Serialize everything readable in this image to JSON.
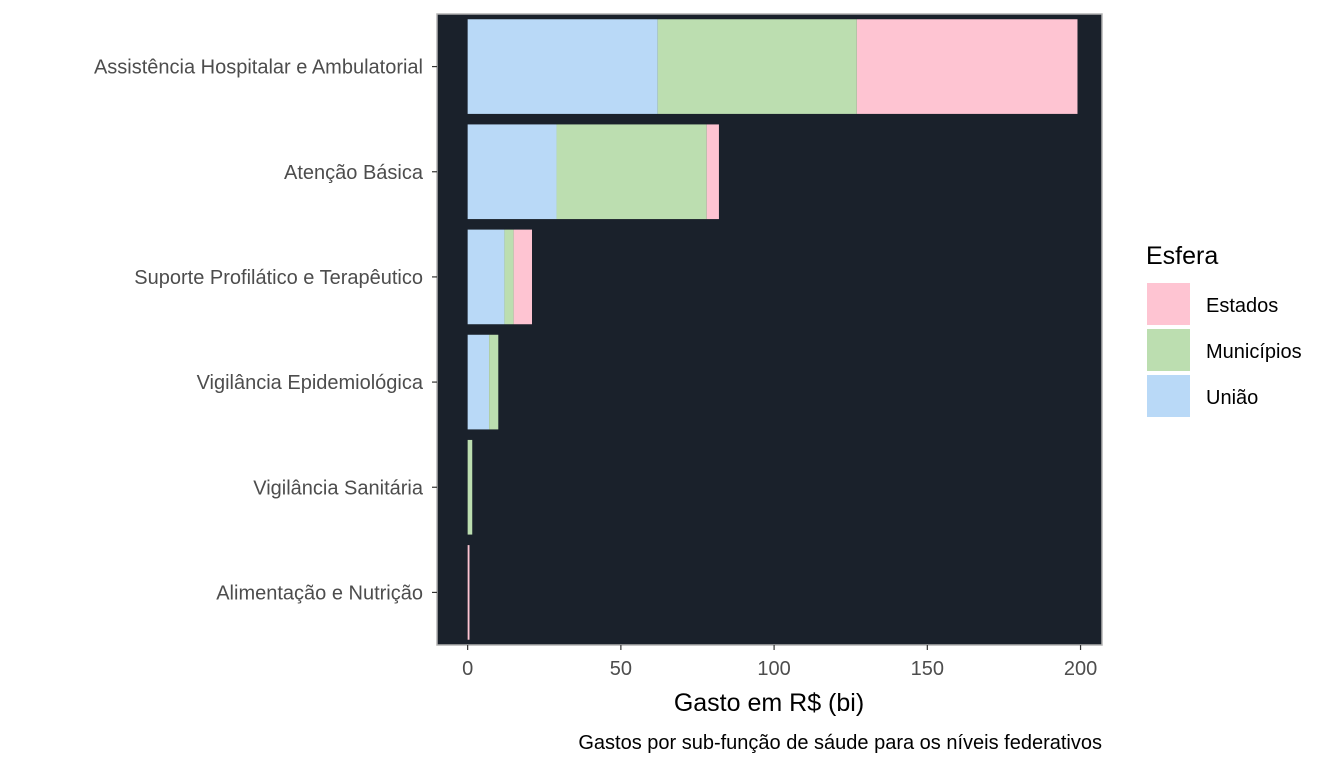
{
  "chart_data": {
    "type": "bar",
    "orientation": "horizontal",
    "stacked": true,
    "categories": [
      "Assistência Hospitalar e Ambulatorial",
      "Atenção Básica",
      "Suporte Profilático e Terapêutico",
      "Vigilância Epidemiológica",
      "Vigilância Sanitária",
      "Alimentação e Nutrição"
    ],
    "series": [
      {
        "name": "União",
        "color": "#b9d9f7",
        "values": [
          62,
          29,
          12,
          7,
          0,
          0
        ]
      },
      {
        "name": "Municípios",
        "color": "#bcdeb0",
        "values": [
          65,
          49,
          3,
          3,
          1.5,
          0
        ]
      },
      {
        "name": "Estados",
        "color": "#fec4d2",
        "values": [
          72,
          4,
          6,
          0,
          0,
          0.6
        ]
      }
    ],
    "xlabel": "Gasto em R$ (bi)",
    "caption": "Gastos por sub-função de sáude para os níveis federativos",
    "xlim": [
      -10,
      207
    ],
    "xticks": [
      0,
      50,
      100,
      150,
      200
    ],
    "panel_background": "#1a212b",
    "grid": false,
    "legend": {
      "title": "Esfera",
      "position": "right",
      "entries": [
        {
          "label": "Estados",
          "color": "#fec4d2"
        },
        {
          "label": "Municípios",
          "color": "#bcdeb0"
        },
        {
          "label": "União",
          "color": "#b9d9f7"
        }
      ]
    }
  }
}
